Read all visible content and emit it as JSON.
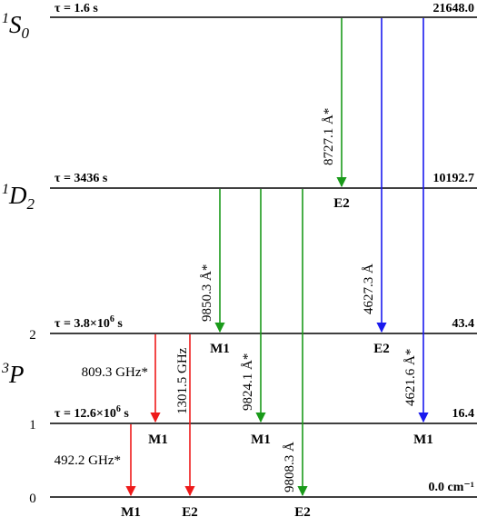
{
  "levels": [
    {
      "id": "1S0",
      "energy": "21648.0",
      "lifetime": "τ = 1.6 s",
      "term_sup": "1",
      "term_main": "S",
      "term_sub": "0"
    },
    {
      "id": "1D2",
      "energy": "10192.7",
      "lifetime": "τ = 3436 s",
      "term_sup": "1",
      "term_main": "D",
      "term_sub": "2"
    },
    {
      "id": "3P2",
      "energy": "43.4",
      "lifetime_prefix": "τ = 3.8×10",
      "lifetime_exp": "6",
      "lifetime_suffix": " s",
      "j": "2"
    },
    {
      "id": "3P1",
      "energy": "16.4",
      "lifetime_prefix": "τ = 12.6×10",
      "lifetime_exp": "6",
      "lifetime_suffix": " s",
      "j": "1"
    },
    {
      "id": "3P0",
      "energy": "0.0 cm⁻¹",
      "j": "0"
    }
  ],
  "triplet_label": {
    "sup": "3",
    "main": "P"
  },
  "transitions": [
    {
      "id": "t1",
      "from": "1S0",
      "to": "1D2",
      "wavelength": "8727.1 Å*",
      "type": "E2",
      "color": "#1a9a1a"
    },
    {
      "id": "t2",
      "from": "1S0",
      "to": "3P2",
      "wavelength": "4627.3 Å",
      "type": "E2",
      "color": "#1a1aee"
    },
    {
      "id": "t3",
      "from": "1S0",
      "to": "3P1",
      "wavelength": "4621.6 Å*",
      "type": "M1",
      "color": "#1a1aee"
    },
    {
      "id": "t4",
      "from": "1D2",
      "to": "3P2",
      "wavelength": "9850.3 Å*",
      "type": "M1",
      "color": "#1a9a1a"
    },
    {
      "id": "t5",
      "from": "1D2",
      "to": "3P1",
      "wavelength": "9824.1 Å*",
      "type": "M1",
      "color": "#1a9a1a"
    },
    {
      "id": "t6",
      "from": "1D2",
      "to": "3P0",
      "wavelength": "9808.3 Å",
      "type": "E2",
      "color": "#1a9a1a"
    },
    {
      "id": "t7",
      "from": "3P2",
      "to": "3P1",
      "wavelength": "809.3 GHz*",
      "type": "M1",
      "color": "#ee1a1a"
    },
    {
      "id": "t8",
      "from": "3P2",
      "to": "3P0",
      "wavelength": "1301.5 GHz",
      "type": "E2",
      "color": "#ee1a1a"
    },
    {
      "id": "t9",
      "from": "3P1",
      "to": "3P0",
      "wavelength": "492.2 GHz*",
      "type": "M1",
      "color": "#ee1a1a"
    }
  ]
}
